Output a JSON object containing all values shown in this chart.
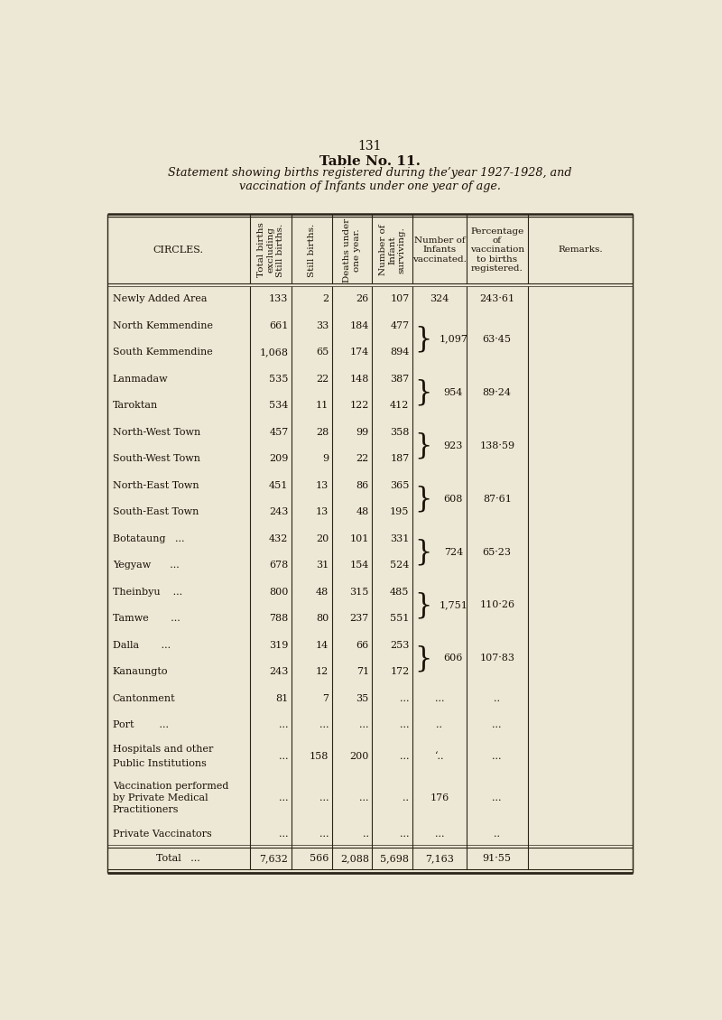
{
  "page_number": "131",
  "table_number": "Table No. 11.",
  "subtitle": "Statement showing births registered during the’year 1927-1928, and\nvaccination of Infants under one year of age.",
  "rows": [
    {
      "circle": "Newly Added Area",
      "total": "133",
      "still": "2",
      "deaths": "26",
      "surviving": "107",
      "vaccinated": "324",
      "percentage": "243·61",
      "brace": null
    },
    {
      "circle": "North Kemmendine",
      "total": "661",
      "still": "33",
      "deaths": "184",
      "surviving": "477",
      "vaccinated": "",
      "percentage": "",
      "brace": "top"
    },
    {
      "circle": "South Kemmendine",
      "total": "1,068",
      "still": "65",
      "deaths": "174",
      "surviving": "894",
      "vaccinated": "1,097",
      "percentage": "63·45",
      "brace": "bottom"
    },
    {
      "circle": "Lanmadaw",
      "total": "535",
      "still": "22",
      "deaths": "148",
      "surviving": "387",
      "vaccinated": "",
      "percentage": "",
      "brace": "top"
    },
    {
      "circle": "Taroktan",
      "total": "534",
      "still": "11",
      "deaths": "122",
      "surviving": "412",
      "vaccinated": "954",
      "percentage": "89·24",
      "brace": "bottom"
    },
    {
      "circle": "North-West Town",
      "total": "457",
      "still": "28",
      "deaths": "99",
      "surviving": "358",
      "vaccinated": "",
      "percentage": "",
      "brace": "top"
    },
    {
      "circle": "South-West Town",
      "total": "209",
      "still": "9",
      "deaths": "22",
      "surviving": "187",
      "vaccinated": "923",
      "percentage": "138·59",
      "brace": "bottom"
    },
    {
      "circle": "North-East Town",
      "total": "451",
      "still": "13",
      "deaths": "86",
      "surviving": "365",
      "vaccinated": "",
      "percentage": "",
      "brace": "top"
    },
    {
      "circle": "South-East Town",
      "total": "243",
      "still": "13",
      "deaths": "48",
      "surviving": "195",
      "vaccinated": "608",
      "percentage": "87·61",
      "brace": "bottom"
    },
    {
      "circle": "Botataung   ...",
      "total": "432",
      "still": "20",
      "deaths": "101",
      "surviving": "331",
      "vaccinated": "",
      "percentage": "",
      "brace": "top"
    },
    {
      "circle": "Yegyaw      ...",
      "total": "678",
      "still": "31",
      "deaths": "154",
      "surviving": "524",
      "vaccinated": "724",
      "percentage": "65·23",
      "brace": "bottom"
    },
    {
      "circle": "Theinbyu    ...",
      "total": "800",
      "still": "48",
      "deaths": "315",
      "surviving": "485",
      "vaccinated": "",
      "percentage": "",
      "brace": "top"
    },
    {
      "circle": "Tamwe       ...",
      "total": "788",
      "still": "80",
      "deaths": "237",
      "surviving": "551",
      "vaccinated": "1,751",
      "percentage": "110·26",
      "brace": "bottom"
    },
    {
      "circle": "Dalla       ...",
      "total": "319",
      "still": "14",
      "deaths": "66",
      "surviving": "253",
      "vaccinated": "",
      "percentage": "",
      "brace": "top"
    },
    {
      "circle": "Kanaungto",
      "total": "243",
      "still": "12",
      "deaths": "71",
      "surviving": "172",
      "vaccinated": "606",
      "percentage": "107·83",
      "brace": "bottom"
    },
    {
      "circle": "Cantonment",
      "total": "81",
      "still": "7",
      "deaths": "35",
      "surviving": "...",
      "vaccinated": "...",
      "percentage": "..",
      "brace": null
    },
    {
      "circle": "Port        ...",
      "total": "...",
      "still": "...",
      "deaths": "...",
      "surviving": "...",
      "vaccinated": "..",
      "percentage": "...",
      "brace": null
    },
    {
      "circle": "Hospitals and other\nPublic Institutions",
      "total": "...",
      "still": "158",
      "deaths": "200",
      "surviving": "...",
      "vaccinated": "‘..",
      "percentage": "...",
      "brace": null
    },
    {
      "circle": "Vaccination performed\nby Private Medical\nPractitioners",
      "total": "...",
      "still": "...",
      "deaths": "...",
      "surviving": "..",
      "vaccinated": "176",
      "percentage": "...",
      "brace": null
    },
    {
      "circle": "Private Vaccinators",
      "total": "...",
      "still": "...",
      "deaths": "..",
      "surviving": "...",
      "vaccinated": "...",
      "percentage": "..",
      "brace": null
    }
  ],
  "total_row": {
    "circle": "Total   ...",
    "total": "7,632",
    "still": "566",
    "deaths": "2,088",
    "surviving": "5,698",
    "vaccinated": "7,163",
    "percentage": "91·55"
  },
  "bg_color": "#ede8d5",
  "text_color": "#1a1008",
  "line_color": "#2a2418",
  "font_size": 8.0
}
